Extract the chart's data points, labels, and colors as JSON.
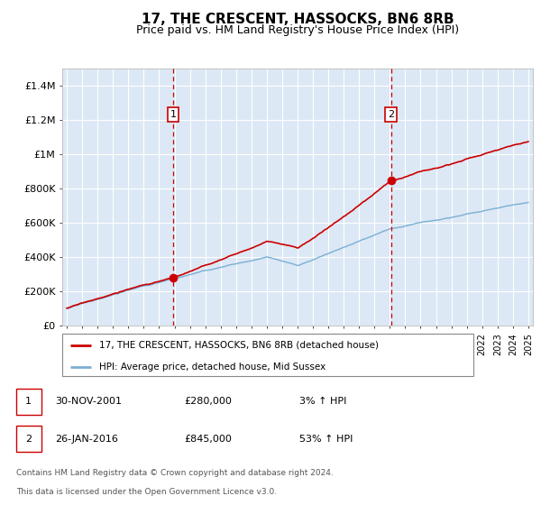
{
  "title": "17, THE CRESCENT, HASSOCKS, BN6 8RB",
  "subtitle": "Price paid vs. HM Land Registry's House Price Index (HPI)",
  "title_fontsize": 11,
  "subtitle_fontsize": 9,
  "ylim": [
    0,
    1500000
  ],
  "yticks": [
    0,
    200000,
    400000,
    600000,
    800000,
    1000000,
    1200000,
    1400000
  ],
  "ytick_labels": [
    "£0",
    "£200K",
    "£400K",
    "£600K",
    "£800K",
    "£1M",
    "£1.2M",
    "£1.4M"
  ],
  "bg_color": "#dce8f5",
  "grid_color": "#ffffff",
  "sale1_year": 2001.917,
  "sale1_price": 280000,
  "sale2_year": 2016.083,
  "sale2_price": 845000,
  "legend_entries": [
    "17, THE CRESCENT, HASSOCKS, BN6 8RB (detached house)",
    "HPI: Average price, detached house, Mid Sussex"
  ],
  "legend_colors": [
    "#cc0000",
    "#7bafd4"
  ],
  "footer_line1": "Contains HM Land Registry data © Crown copyright and database right 2024.",
  "footer_line2": "This data is licensed under the Open Government Licence v3.0.",
  "table_rows": [
    [
      "1",
      "30-NOV-2001",
      "£280,000",
      "3% ↑ HPI"
    ],
    [
      "2",
      "26-JAN-2016",
      "£845,000",
      "53% ↑ HPI"
    ]
  ],
  "hpi_line_color": "#7bafd4",
  "price_line_color": "#cc0000",
  "dashed_line_color": "#cc0000",
  "marker_color": "#cc0000",
  "marker_box_color": "#cc0000",
  "xlim_left": 1994.7,
  "xlim_right": 2025.3
}
